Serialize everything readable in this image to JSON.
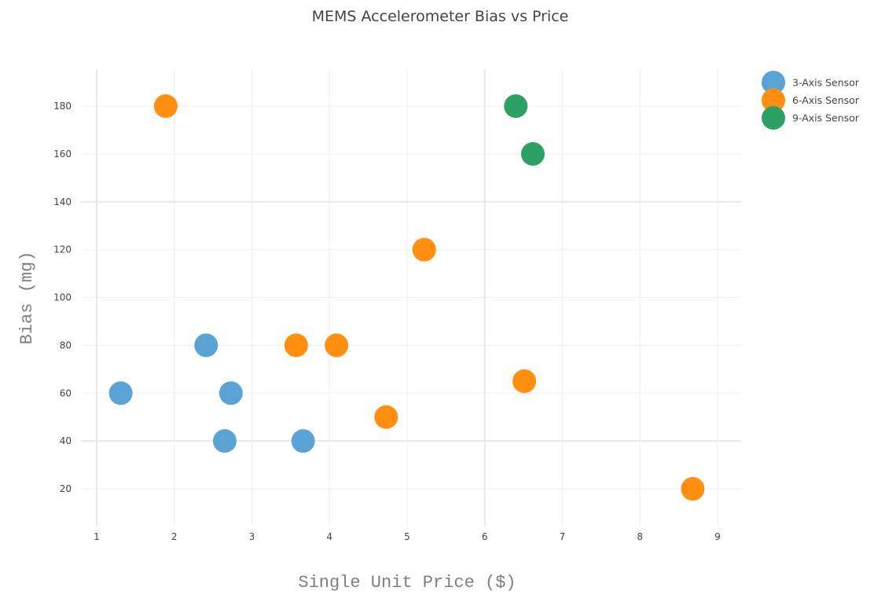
{
  "chart_data": {
    "type": "scatter",
    "title": "MEMS Accelerometer Bias vs Price",
    "xlabel": "Single Unit Price ($)",
    "ylabel": "Bias (mg)",
    "xlim": [
      0.8,
      9.3
    ],
    "ylim": [
      4,
      195
    ],
    "x_ticks": [
      1,
      2,
      3,
      4,
      5,
      6,
      7,
      8,
      9
    ],
    "y_ticks": [
      20,
      40,
      60,
      80,
      100,
      120,
      140,
      160,
      180
    ],
    "grid": true,
    "legend_position": "top-right-outside",
    "series": [
      {
        "name": "3-Axis Sensor",
        "color": "#5ba3d5",
        "points": [
          {
            "x": 1.31,
            "y": 60
          },
          {
            "x": 2.41,
            "y": 80
          },
          {
            "x": 2.73,
            "y": 60
          },
          {
            "x": 2.65,
            "y": 40
          },
          {
            "x": 3.66,
            "y": 40
          }
        ]
      },
      {
        "name": "6-Axis Sensor",
        "color": "#ff8f10",
        "points": [
          {
            "x": 1.89,
            "y": 180
          },
          {
            "x": 3.57,
            "y": 80
          },
          {
            "x": 4.09,
            "y": 80
          },
          {
            "x": 5.22,
            "y": 120
          },
          {
            "x": 4.73,
            "y": 50
          },
          {
            "x": 6.51,
            "y": 65
          },
          {
            "x": 8.68,
            "y": 20
          }
        ]
      },
      {
        "name": "9-Axis Sensor",
        "color": "#2ca065",
        "points": [
          {
            "x": 6.4,
            "y": 180
          },
          {
            "x": 6.62,
            "y": 160
          }
        ]
      }
    ]
  }
}
